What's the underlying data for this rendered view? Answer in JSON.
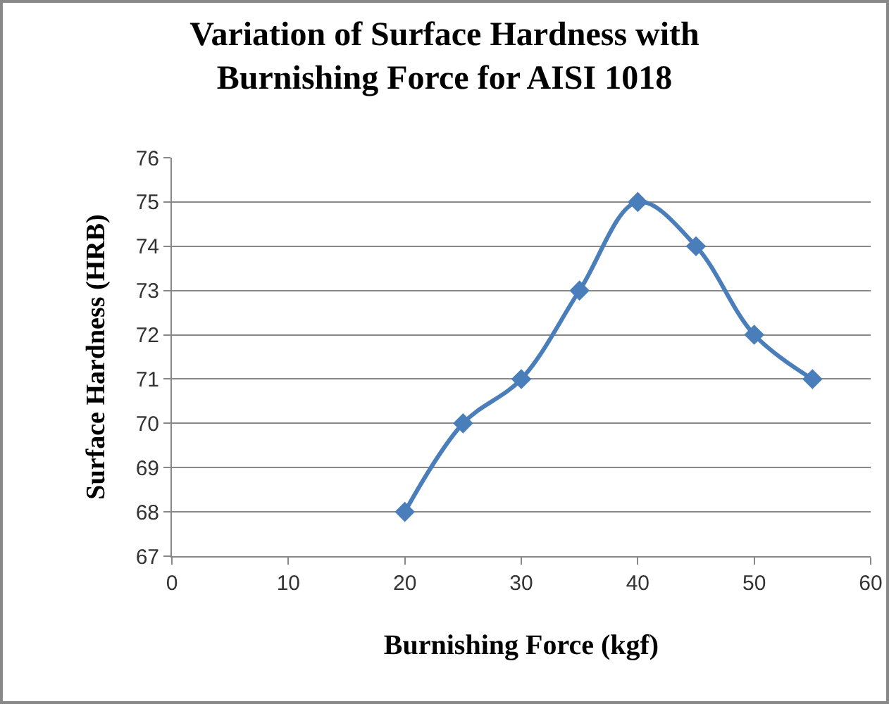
{
  "chart_data": {
    "type": "line",
    "title": "Variation of Surface Hardness with\nBurnishing Force for AISI 1018",
    "xlabel": "Burnishing Force (kgf)",
    "ylabel": "Surface Hardness (HRB)",
    "x": [
      20,
      25,
      30,
      35,
      40,
      45,
      50,
      55
    ],
    "series": [
      {
        "color": "#4a7ebb",
        "values": [
          68,
          70,
          71,
          73,
          75,
          74,
          72,
          71
        ]
      }
    ],
    "xlim": [
      0,
      60
    ],
    "xticks": [
      0,
      10,
      20,
      30,
      40,
      50,
      60
    ],
    "ylim": [
      67,
      76
    ],
    "yticks": [
      67,
      68,
      69,
      70,
      71,
      72,
      73,
      74,
      75,
      76
    ],
    "grid": "y",
    "marker": "diamond",
    "line_style": "solid"
  }
}
